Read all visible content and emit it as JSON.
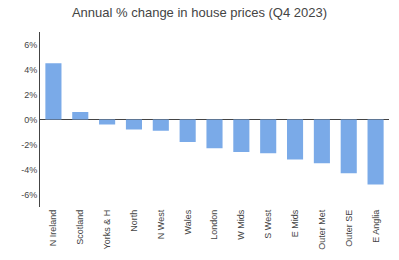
{
  "chart_data": {
    "type": "bar",
    "title": "Annual % change in house prices (Q4 2023)",
    "categories": [
      "N Ireland",
      "Scotland",
      "Yorks & H",
      "North",
      "N West",
      "Wales",
      "London",
      "W Mids",
      "S West",
      "E Mids",
      "Outer Met",
      "Outer SE",
      "E Anglia"
    ],
    "values": [
      4.5,
      0.6,
      -0.4,
      -0.8,
      -0.9,
      -1.8,
      -2.3,
      -2.6,
      -2.7,
      -3.2,
      -3.5,
      -4.3,
      -5.2
    ],
    "color": "#7aaae8",
    "ylim": [
      -7,
      7
    ],
    "yticks": [
      {
        "value": -6,
        "label": "-6%"
      },
      {
        "value": -4,
        "label": "-4%"
      },
      {
        "value": -2,
        "label": "-2%"
      },
      {
        "value": 0,
        "label": "0%"
      },
      {
        "value": 2,
        "label": "2%"
      },
      {
        "value": 4,
        "label": "4%"
      },
      {
        "value": 6,
        "label": "6%"
      }
    ],
    "grid": false
  }
}
